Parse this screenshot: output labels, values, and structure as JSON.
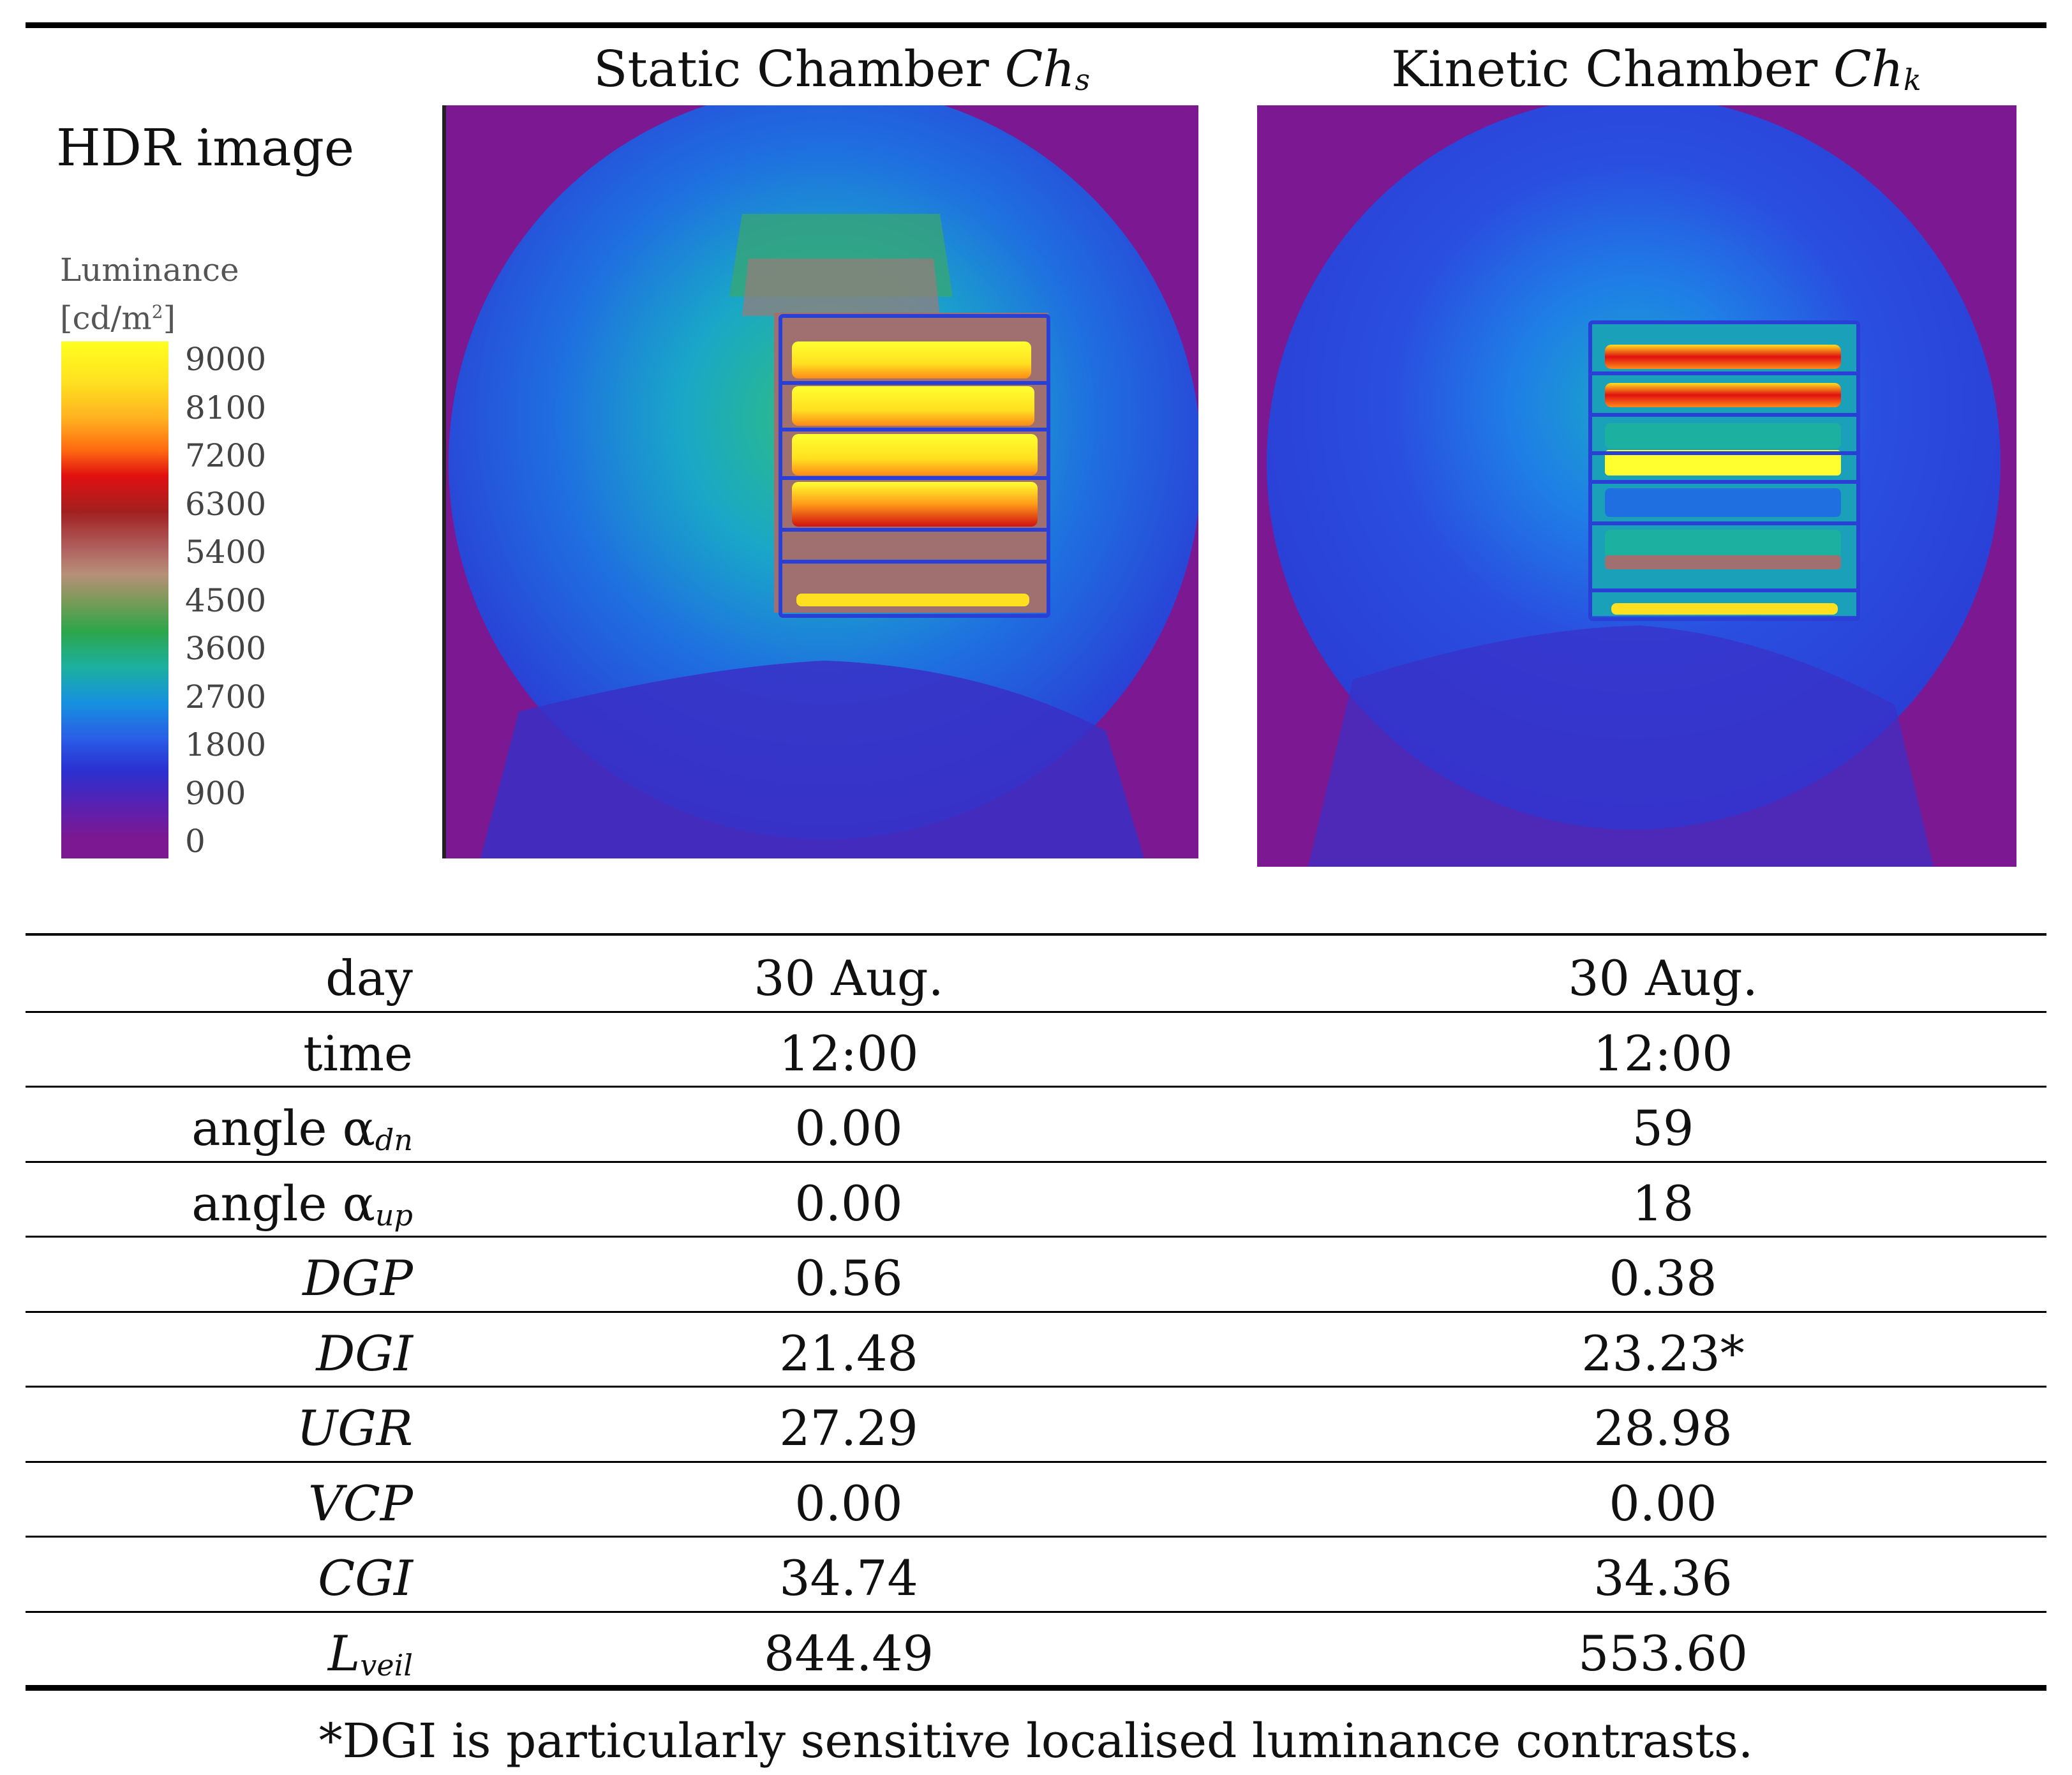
{
  "header": {
    "hdr_label": "HDR image",
    "static_title": "Static Chamber",
    "static_symbol": "Ch",
    "static_sub": "s",
    "kinetic_title": "Kinetic Chamber",
    "kinetic_symbol": "Ch",
    "kinetic_sub": "k"
  },
  "legend": {
    "title": "Luminance",
    "unit_main": "[cd/m",
    "unit_sup": "2",
    "unit_close": "]",
    "ticks": [
      "9000",
      "8100",
      "7200",
      "6300",
      "5400",
      "4500",
      "3600",
      "2700",
      "1800",
      "900",
      "0"
    ]
  },
  "table": {
    "rows": [
      {
        "label": "day",
        "static": "30 Aug.",
        "kinetic": "30 Aug."
      },
      {
        "label": "time",
        "static": "12:00",
        "kinetic": "12:00"
      },
      {
        "label": "angle α",
        "sub": "dn",
        "static": "0.00",
        "kinetic": "59"
      },
      {
        "label": "angle α",
        "sub": "up",
        "static": "0.00",
        "kinetic": "18"
      },
      {
        "label": "DGP",
        "static": "0.56",
        "kinetic": "0.38"
      },
      {
        "label": "DGI",
        "static": "21.48",
        "kinetic": "23.23*"
      },
      {
        "label": "UGR",
        "static": "27.29",
        "kinetic": "28.98"
      },
      {
        "label": "VCP",
        "static": "0.00",
        "kinetic": "0.00"
      },
      {
        "label": "CGI",
        "static": "34.74",
        "kinetic": "34.36"
      },
      {
        "label": "L",
        "sub": "veil",
        "static": "844.49",
        "kinetic": "553.60"
      }
    ]
  },
  "footnote": "*DGI is particularly sensitive localised luminance contrasts."
}
